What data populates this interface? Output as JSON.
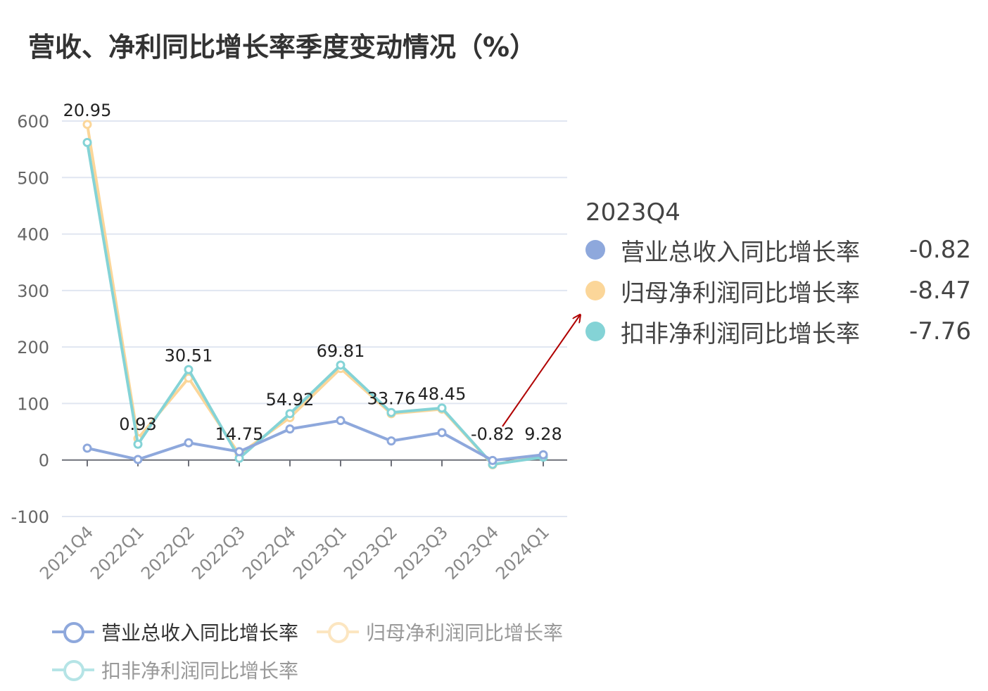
{
  "title": "营收、净利同比增长率季度变动情况（%）",
  "colors": {
    "revenue": "#8ea8dc",
    "net_profit": "#fbd699",
    "deducted_profit": "#84d3d6",
    "axis": "#666666",
    "grid": "#e0e6f1",
    "annotation_arrow": "#b00000",
    "legend_active_text": "#333333",
    "legend_inactive_text": "#999999"
  },
  "tooltip": {
    "title": "2023Q4",
    "rows": [
      {
        "name": "营业总收入同比增长率",
        "value": "-0.82",
        "color": "#8ea8dc"
      },
      {
        "name": "归母净利润同比增长率",
        "value": "-8.47",
        "color": "#fbd699"
      },
      {
        "name": "扣非净利润同比增长率",
        "value": "-7.76",
        "color": "#84d3d6"
      }
    ]
  },
  "legend": [
    {
      "name": "营业总收入同比增长率",
      "color": "#8ea8dc",
      "active": true
    },
    {
      "name": "归母净利润同比增长率",
      "color": "#fbd699",
      "active": false
    },
    {
      "name": "扣非净利润同比增长率",
      "color": "#84d3d6",
      "active": false
    }
  ],
  "chart_data": {
    "type": "line",
    "title": "营收、净利同比增长率季度变动情况（%）",
    "categories": [
      "2021Q4",
      "2022Q1",
      "2022Q2",
      "2022Q3",
      "2022Q4",
      "2023Q1",
      "2023Q2",
      "2023Q3",
      "2023Q4",
      "2024Q1"
    ],
    "ylim": [
      -100,
      600
    ],
    "yticks": [
      -100,
      0,
      100,
      200,
      300,
      400,
      500,
      600
    ],
    "grid": true,
    "legend_position": "bottom",
    "series": [
      {
        "name": "营业总收入同比增长率",
        "color": "#8ea8dc",
        "values": [
          20.95,
          0.93,
          30.51,
          14.75,
          54.92,
          69.81,
          33.76,
          48.45,
          -0.82,
          9.28
        ],
        "labels": [
          "20.95",
          "0.93",
          "30.51",
          "14.75",
          "54.92",
          "69.81",
          "33.76",
          "48.45",
          "-0.82",
          "9.28"
        ]
      },
      {
        "name": "归母净利润同比增长率",
        "color": "#fbd699",
        "values": [
          594,
          38,
          145,
          10,
          75,
          162,
          82,
          90,
          -8.47,
          7
        ]
      },
      {
        "name": "扣非净利润同比增长率",
        "color": "#84d3d6",
        "values": [
          562,
          28,
          160,
          3,
          82,
          168,
          84,
          92,
          -7.76,
          5
        ]
      }
    ],
    "annotation": {
      "type": "arrow",
      "from_category": "2023Q4",
      "to": "tooltip"
    }
  }
}
